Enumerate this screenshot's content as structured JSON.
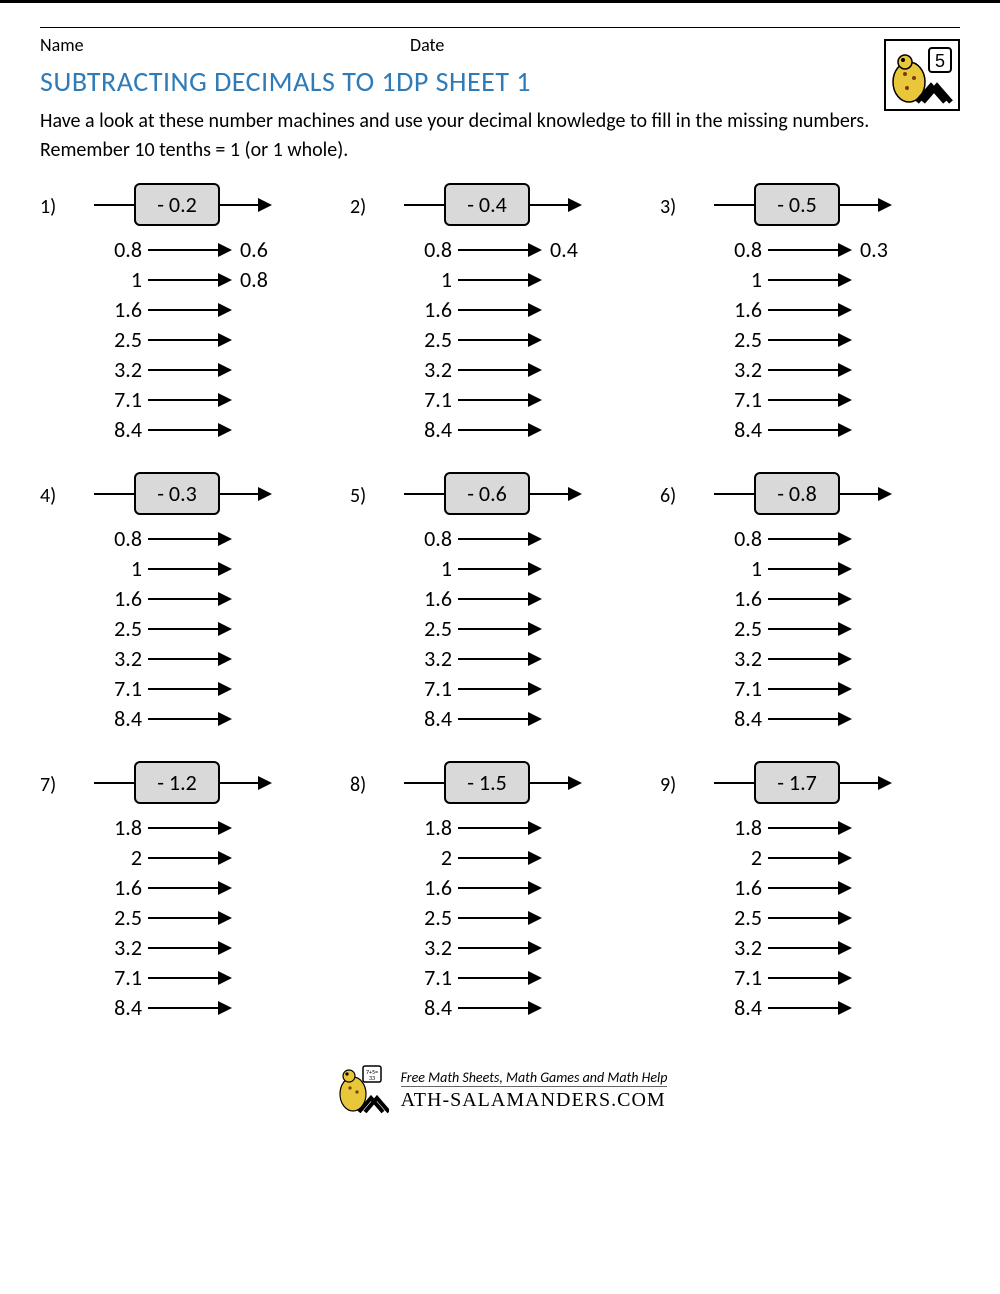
{
  "colors": {
    "title": "#2e7bb8",
    "opbox_bg": "#d9d9d9",
    "border": "#000000",
    "text": "#000000",
    "background": "#ffffff"
  },
  "typography": {
    "title_fontsize": 28,
    "body_fontsize": 20,
    "value_fontsize": 22
  },
  "header": {
    "name_label": "Name",
    "date_label": "Date",
    "grade_badge": "5"
  },
  "title": "SUBTRACTING DECIMALS TO 1DP SHEET 1",
  "instructions": "Have a look at these number machines and use your decimal knowledge to fill in the missing numbers. Remember 10 tenths = 1 (or 1 whole).",
  "problems": [
    {
      "num": "1)",
      "op": "- 0.2",
      "rows": [
        {
          "in": "0.8",
          "out": "0.6"
        },
        {
          "in": "1",
          "out": "0.8"
        },
        {
          "in": "1.6",
          "out": ""
        },
        {
          "in": "2.5",
          "out": ""
        },
        {
          "in": "3.2",
          "out": ""
        },
        {
          "in": "7.1",
          "out": ""
        },
        {
          "in": "8.4",
          "out": ""
        }
      ]
    },
    {
      "num": "2)",
      "op": "- 0.4",
      "rows": [
        {
          "in": "0.8",
          "out": "0.4"
        },
        {
          "in": "1",
          "out": ""
        },
        {
          "in": "1.6",
          "out": ""
        },
        {
          "in": "2.5",
          "out": ""
        },
        {
          "in": "3.2",
          "out": ""
        },
        {
          "in": "7.1",
          "out": ""
        },
        {
          "in": "8.4",
          "out": ""
        }
      ]
    },
    {
      "num": "3)",
      "op": "- 0.5",
      "rows": [
        {
          "in": "0.8",
          "out": "0.3"
        },
        {
          "in": "1",
          "out": ""
        },
        {
          "in": "1.6",
          "out": ""
        },
        {
          "in": "2.5",
          "out": ""
        },
        {
          "in": "3.2",
          "out": ""
        },
        {
          "in": "7.1",
          "out": ""
        },
        {
          "in": "8.4",
          "out": ""
        }
      ]
    },
    {
      "num": "4)",
      "op": "- 0.3",
      "rows": [
        {
          "in": "0.8",
          "out": ""
        },
        {
          "in": "1",
          "out": ""
        },
        {
          "in": "1.6",
          "out": ""
        },
        {
          "in": "2.5",
          "out": ""
        },
        {
          "in": "3.2",
          "out": ""
        },
        {
          "in": "7.1",
          "out": ""
        },
        {
          "in": "8.4",
          "out": ""
        }
      ]
    },
    {
      "num": "5)",
      "op": "- 0.6",
      "rows": [
        {
          "in": "0.8",
          "out": ""
        },
        {
          "in": "1",
          "out": ""
        },
        {
          "in": "1.6",
          "out": ""
        },
        {
          "in": "2.5",
          "out": ""
        },
        {
          "in": "3.2",
          "out": ""
        },
        {
          "in": "7.1",
          "out": ""
        },
        {
          "in": "8.4",
          "out": ""
        }
      ]
    },
    {
      "num": "6)",
      "op": "- 0.8",
      "rows": [
        {
          "in": "0.8",
          "out": ""
        },
        {
          "in": "1",
          "out": ""
        },
        {
          "in": "1.6",
          "out": ""
        },
        {
          "in": "2.5",
          "out": ""
        },
        {
          "in": "3.2",
          "out": ""
        },
        {
          "in": "7.1",
          "out": ""
        },
        {
          "in": "8.4",
          "out": ""
        }
      ]
    },
    {
      "num": "7)",
      "op": "- 1.2",
      "rows": [
        {
          "in": "1.8",
          "out": ""
        },
        {
          "in": "2",
          "out": ""
        },
        {
          "in": "1.6",
          "out": ""
        },
        {
          "in": "2.5",
          "out": ""
        },
        {
          "in": "3.2",
          "out": ""
        },
        {
          "in": "7.1",
          "out": ""
        },
        {
          "in": "8.4",
          "out": ""
        }
      ]
    },
    {
      "num": "8)",
      "op": "- 1.5",
      "rows": [
        {
          "in": "1.8",
          "out": ""
        },
        {
          "in": "2",
          "out": ""
        },
        {
          "in": "1.6",
          "out": ""
        },
        {
          "in": "2.5",
          "out": ""
        },
        {
          "in": "3.2",
          "out": ""
        },
        {
          "in": "7.1",
          "out": ""
        },
        {
          "in": "8.4",
          "out": ""
        }
      ]
    },
    {
      "num": "9)",
      "op": "- 1.7",
      "rows": [
        {
          "in": "1.8",
          "out": ""
        },
        {
          "in": "2",
          "out": ""
        },
        {
          "in": "1.6",
          "out": ""
        },
        {
          "in": "2.5",
          "out": ""
        },
        {
          "in": "3.2",
          "out": ""
        },
        {
          "in": "7.1",
          "out": ""
        },
        {
          "in": "8.4",
          "out": ""
        }
      ]
    }
  ],
  "footer": {
    "line1": "Free Math Sheets, Math Games and Math Help",
    "line2": "ATH-SALAMANDERS.COM"
  }
}
